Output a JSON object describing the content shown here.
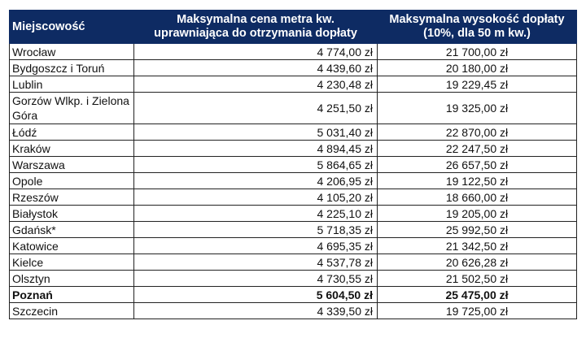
{
  "table": {
    "headers": {
      "city": "Miejscowość",
      "price_line1": "Maksymalna cena metra kw.",
      "price_line2": "uprawniająca do otrzymania dopłaty",
      "subsidy_line1": "Maksymalna wysokość  dopłaty",
      "subsidy_line2": "(10%, dla 50 m kw.)"
    },
    "colors": {
      "header_bg": "#0e2b63",
      "header_text": "#ffffff",
      "border": "#222222"
    },
    "rows": [
      {
        "city": "Wrocław",
        "price": "4 774,00 zł",
        "subsidy": "21 700,00 zł"
      },
      {
        "city": "Bydgoszcz i Toruń",
        "price": "4 439,60 zł",
        "subsidy": "20 180,00 zł"
      },
      {
        "city": "Lublin",
        "price": "4 230,48 zł",
        "subsidy": "19 229,45 zł"
      },
      {
        "city": "Gorzów Wlkp. i Zielona Góra",
        "price": "4 251,50 zł",
        "subsidy": "19 325,00 zł"
      },
      {
        "city": "Łódź",
        "price": "5 031,40 zł",
        "subsidy": "22 870,00 zł"
      },
      {
        "city": "Kraków",
        "price": "4 894,45 zł",
        "subsidy": "22 247,50 zł"
      },
      {
        "city": "Warszawa",
        "price": "5 864,65 zł",
        "subsidy": "26 657,50 zł"
      },
      {
        "city": "Opole",
        "price": "4 206,95 zł",
        "subsidy": "19 122,50 zł"
      },
      {
        "city": "Rzeszów",
        "price": "4 105,20 zł",
        "subsidy": "18 660,00 zł"
      },
      {
        "city": "Białystok",
        "price": "4 225,10 zł",
        "subsidy": "19 205,00 zł"
      },
      {
        "city": "Gdańsk*",
        "price": "5 718,35 zł",
        "subsidy": "25 992,50 zł"
      },
      {
        "city": "Katowice",
        "price": "4 695,35 zł",
        "subsidy": "21 342,50 zł"
      },
      {
        "city": "Kielce",
        "price": "4 537,78 zł",
        "subsidy": "20 626,28 zł"
      },
      {
        "city": "Olsztyn",
        "price": "4 730,55 zł",
        "subsidy": "21 502,50 zł"
      },
      {
        "city": "Poznań",
        "price": "5 604,50 zł",
        "subsidy": "25 475,00 zł",
        "bold": true
      },
      {
        "city": "Szczecin",
        "price": "4 339,50 zł",
        "subsidy": "19 725,00 zł"
      }
    ]
  }
}
